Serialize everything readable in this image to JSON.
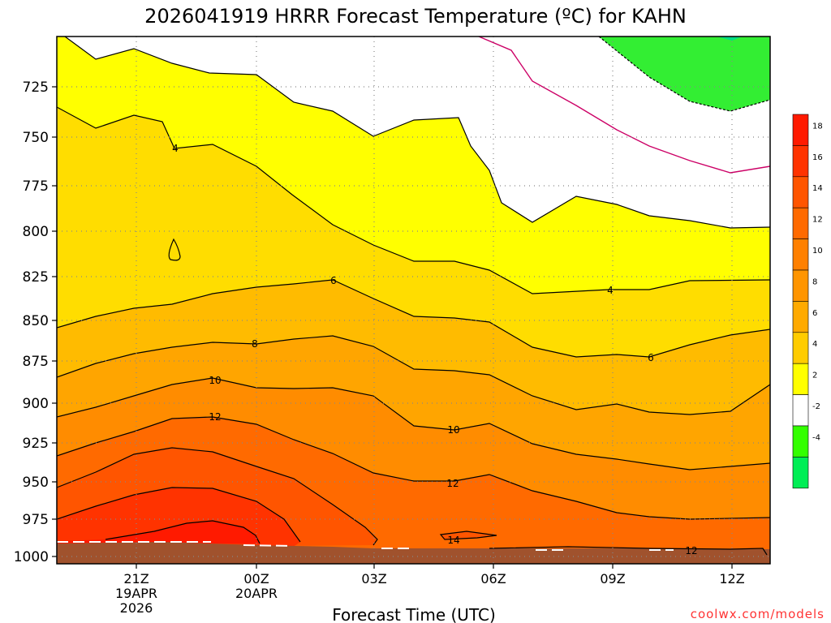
{
  "chart_data": {
    "type": "contour",
    "title": "2026041919 HRRR Forecast Temperature (ºC) for KAHN",
    "xlabel": "Forecast Time (UTC)",
    "ylabel": "",
    "y_ticks": [
      725,
      750,
      775,
      800,
      825,
      850,
      875,
      900,
      925,
      950,
      975,
      1000
    ],
    "y_tick_labels": [
      "725",
      "750",
      "775",
      "800",
      "825",
      "850",
      "875",
      "900",
      "925",
      "950",
      "975",
      "1000"
    ],
    "x_ticks": [
      {
        "label": "21Z",
        "date": "19APR",
        "year": "2026"
      },
      {
        "label": "00Z",
        "date": "20APR",
        "year": ""
      },
      {
        "label": "03Z",
        "date": "",
        "year": ""
      },
      {
        "label": "06Z",
        "date": "",
        "year": ""
      },
      {
        "label": "09Z",
        "date": "",
        "year": ""
      },
      {
        "label": "12Z",
        "date": "",
        "year": ""
      }
    ],
    "contour_labels": [
      "4",
      "6",
      "8",
      "10",
      "12",
      "14",
      "4",
      "6",
      "10",
      "12",
      "12"
    ],
    "colorbar": {
      "labels": [
        "18",
        "16",
        "14",
        "12",
        "10",
        "8",
        "6",
        "4",
        "2",
        "-2",
        "-4"
      ],
      "colors": [
        "#ff1a00",
        "#ff3300",
        "#ff5500",
        "#ff6a00",
        "#ff8000",
        "#ff9500",
        "#ffaa00",
        "#ffcc00",
        "#ffff00",
        "#ffffff",
        "#33ff00",
        "#00ee55"
      ]
    },
    "credit": "coolwx.com/models"
  },
  "colors": {
    "ground": "#a0522d",
    "magenta_isotherm": "#cc0066"
  }
}
